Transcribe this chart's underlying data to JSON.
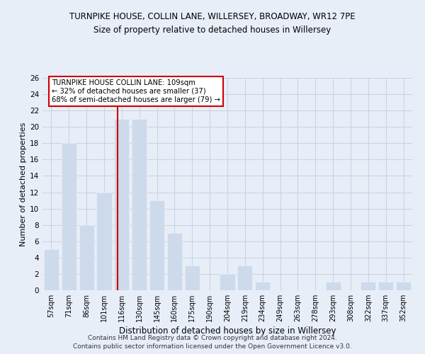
{
  "title": "TURNPIKE HOUSE, COLLIN LANE, WILLERSEY, BROADWAY, WR12 7PE",
  "subtitle": "Size of property relative to detached houses in Willersey",
  "xlabel": "Distribution of detached houses by size in Willersey",
  "ylabel": "Number of detached properties",
  "categories": [
    "57sqm",
    "71sqm",
    "86sqm",
    "101sqm",
    "116sqm",
    "130sqm",
    "145sqm",
    "160sqm",
    "175sqm",
    "190sqm",
    "204sqm",
    "219sqm",
    "234sqm",
    "249sqm",
    "263sqm",
    "278sqm",
    "293sqm",
    "308sqm",
    "322sqm",
    "337sqm",
    "352sqm"
  ],
  "values": [
    5,
    18,
    8,
    12,
    21,
    21,
    11,
    7,
    3,
    0,
    2,
    3,
    1,
    0,
    0,
    0,
    1,
    0,
    1,
    1,
    1
  ],
  "bar_color": "#ccdaeb",
  "bar_edge_color": "#b0c4de",
  "grid_color": "#c8d4e4",
  "background_color": "#e8eef8",
  "vline_x_index": 3.78,
  "vline_color": "#cc0000",
  "annotation_text": "TURNPIKE HOUSE COLLIN LANE: 109sqm\n← 32% of detached houses are smaller (37)\n68% of semi-detached houses are larger (79) →",
  "ylim": [
    0,
    26
  ],
  "yticks": [
    0,
    2,
    4,
    6,
    8,
    10,
    12,
    14,
    16,
    18,
    20,
    22,
    24,
    26
  ],
  "footer_line1": "Contains HM Land Registry data © Crown copyright and database right 2024.",
  "footer_line2": "Contains public sector information licensed under the Open Government Licence v3.0."
}
